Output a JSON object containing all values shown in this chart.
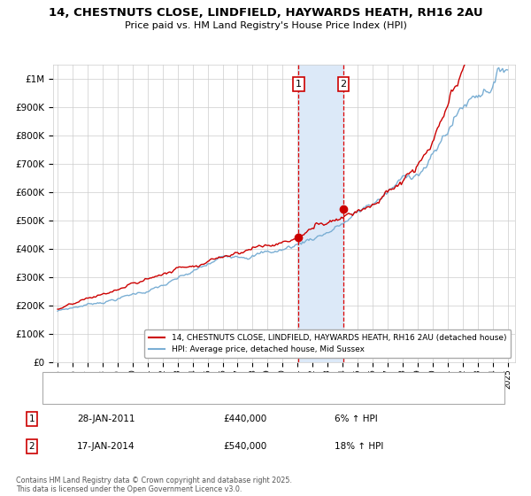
{
  "title": "14, CHESTNUTS CLOSE, LINDFIELD, HAYWARDS HEATH, RH16 2AU",
  "subtitle": "Price paid vs. HM Land Registry's House Price Index (HPI)",
  "red_label": "14, CHESTNUTS CLOSE, LINDFIELD, HAYWARDS HEATH, RH16 2AU (detached house)",
  "blue_label": "HPI: Average price, detached house, Mid Sussex",
  "transaction1_date": "28-JAN-2011",
  "transaction1_price": 440000,
  "transaction1_pct": "6% ↑ HPI",
  "transaction2_date": "17-JAN-2014",
  "transaction2_price": 540000,
  "transaction2_pct": "18% ↑ HPI",
  "vline1_x": 2011.07,
  "vline2_x": 2014.05,
  "shade_color": "#dce9f8",
  "vline_color": "#dd0000",
  "red_color": "#cc0000",
  "blue_color": "#7bafd4",
  "background_color": "#ffffff",
  "grid_color": "#cccccc",
  "ylim": [
    0,
    1050000
  ],
  "xlim": [
    1994.7,
    2025.5
  ],
  "footer": "Contains HM Land Registry data © Crown copyright and database right 2025.\nThis data is licensed under the Open Government Licence v3.0."
}
